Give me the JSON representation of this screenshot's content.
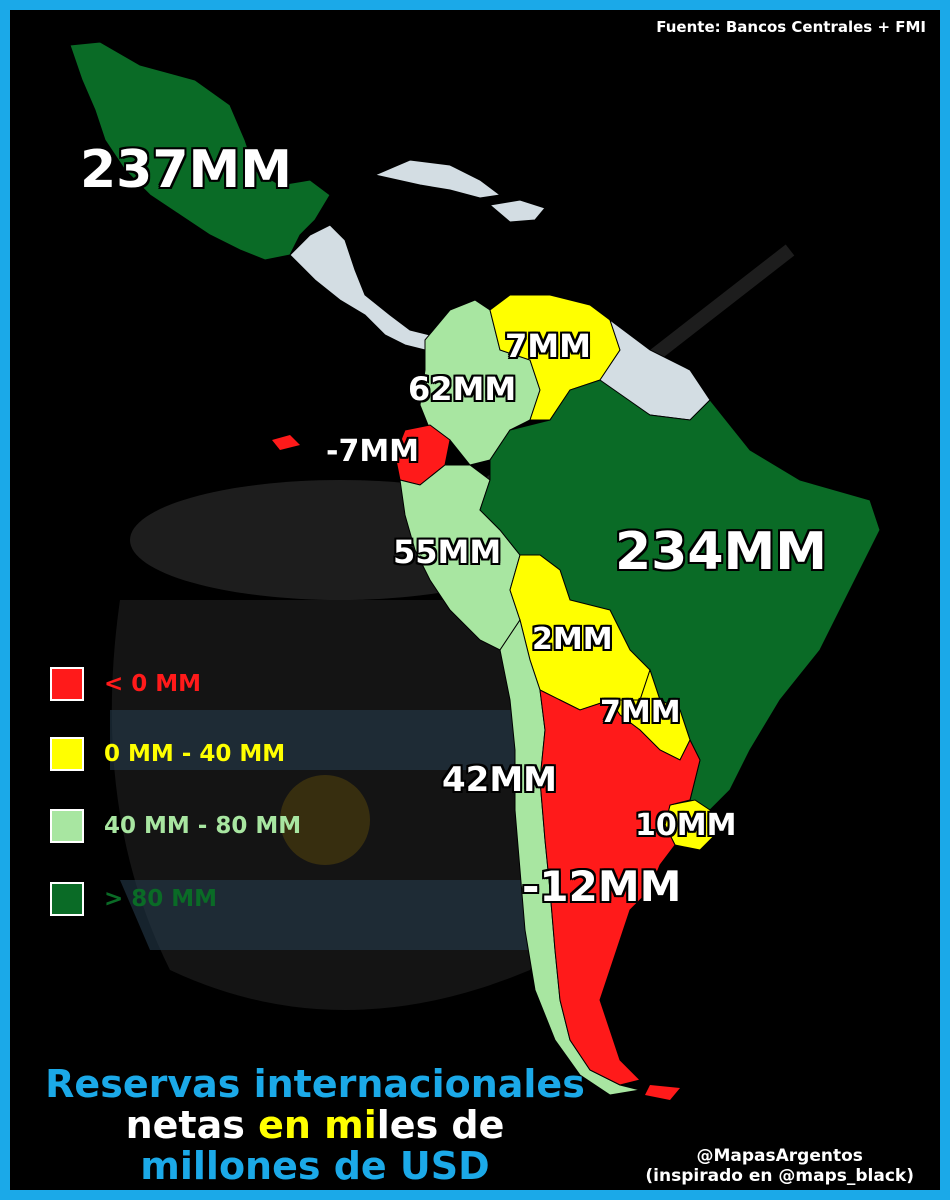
{
  "source": "Fuente: Bancos Centrales + FMI",
  "colors": {
    "negative": "#ff1a1a",
    "low": "#ffff00",
    "mid": "#a8e6a1",
    "high": "#0a6b26",
    "no_data": "#d3dde3",
    "title_blue": "#1ba9e8",
    "title_yellow": "#ffff00"
  },
  "regions": {
    "mexico": "237MM",
    "venezuela": "7MM",
    "colombia": "62MM",
    "ecuador": "-7MM",
    "peru": "55MM",
    "brazil": "234MM",
    "bolivia": "2MM",
    "paraguay": "7MM",
    "chile": "42MM",
    "uruguay": "10MM",
    "argentina": "-12MM"
  },
  "legend": [
    {
      "label": "< 0 MM",
      "color": "#ff1a1a"
    },
    {
      "label": "0 MM - 40 MM",
      "color": "#ffff00"
    },
    {
      "label": "40 MM - 80 MM",
      "color": "#a8e6a1"
    },
    {
      "label": "> 80 MM",
      "color": "#0a6b26"
    }
  ],
  "title": {
    "line1": "Reservas internacionales",
    "line2_a": "netas ",
    "line2_b": "en mi",
    "line2_c": "les de",
    "line3": "millones de USD"
  },
  "credit": {
    "handle": "@MapasArgentos",
    "inspired": "(inspirado en @maps_black)"
  }
}
